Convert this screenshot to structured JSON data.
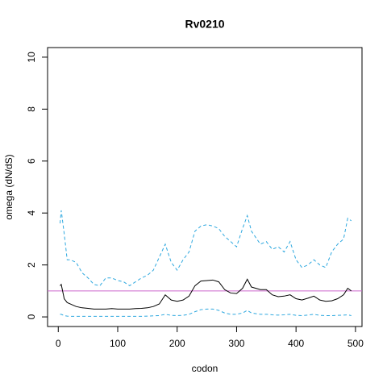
{
  "chart_data": {
    "type": "line",
    "title": "Rv0210",
    "x_label": "codon",
    "y_label": "omega (dN/dS)",
    "x": [
      3,
      5,
      10,
      15,
      20,
      30,
      40,
      50,
      60,
      70,
      80,
      90,
      100,
      110,
      120,
      130,
      140,
      150,
      160,
      170,
      180,
      190,
      200,
      210,
      220,
      230,
      240,
      250,
      260,
      270,
      280,
      290,
      300,
      310,
      318,
      325,
      340,
      350,
      360,
      370,
      380,
      390,
      400,
      410,
      420,
      430,
      440,
      450,
      460,
      470,
      480,
      487,
      493
    ],
    "series": [
      {
        "color": "#000000",
        "dashed": false,
        "values": [
          1.2,
          1.25,
          0.7,
          0.55,
          0.5,
          0.4,
          0.35,
          0.33,
          0.3,
          0.3,
          0.3,
          0.32,
          0.3,
          0.3,
          0.3,
          0.32,
          0.33,
          0.35,
          0.4,
          0.5,
          0.85,
          0.65,
          0.6,
          0.65,
          0.8,
          1.2,
          1.38,
          1.4,
          1.42,
          1.35,
          1.05,
          0.92,
          0.9,
          1.1,
          1.45,
          1.15,
          1.05,
          1.05,
          0.85,
          0.78,
          0.8,
          0.85,
          0.7,
          0.65,
          0.72,
          0.8,
          0.65,
          0.6,
          0.62,
          0.7,
          0.85,
          1.1,
          1.0
        ]
      },
      {
        "color": "#2ea8df",
        "dashed": true,
        "values": [
          3.6,
          4.1,
          3.2,
          2.2,
          2.2,
          2.1,
          1.7,
          1.5,
          1.25,
          1.2,
          1.5,
          1.5,
          1.4,
          1.35,
          1.2,
          1.35,
          1.5,
          1.6,
          1.8,
          2.3,
          2.8,
          2.1,
          1.8,
          2.2,
          2.5,
          3.3,
          3.5,
          3.55,
          3.5,
          3.4,
          3.1,
          2.9,
          2.7,
          3.4,
          3.9,
          3.3,
          2.8,
          2.9,
          2.6,
          2.7,
          2.5,
          2.9,
          2.2,
          1.9,
          2.0,
          2.2,
          2.0,
          1.9,
          2.5,
          2.8,
          3.0,
          3.8,
          3.7
        ]
      },
      {
        "color": "#2ea8df",
        "dashed": true,
        "values": [
          0.1,
          0.1,
          0.05,
          0.03,
          0.02,
          0.02,
          0.02,
          0.02,
          0.02,
          0.02,
          0.02,
          0.02,
          0.02,
          0.02,
          0.02,
          0.02,
          0.02,
          0.03,
          0.04,
          0.05,
          0.1,
          0.06,
          0.05,
          0.06,
          0.1,
          0.2,
          0.28,
          0.3,
          0.3,
          0.25,
          0.15,
          0.1,
          0.1,
          0.15,
          0.25,
          0.15,
          0.1,
          0.1,
          0.08,
          0.07,
          0.08,
          0.1,
          0.06,
          0.05,
          0.07,
          0.1,
          0.06,
          0.05,
          0.05,
          0.06,
          0.07,
          0.08,
          0.05
        ]
      }
    ],
    "hline": {
      "value": 1,
      "color": "#cc66cc"
    },
    "xlim": [
      -18,
      511
    ],
    "ylim": [
      -0.37,
      10.37
    ],
    "xticks": [
      0,
      100,
      200,
      300,
      400,
      500
    ],
    "yticks": [
      0,
      2,
      4,
      6,
      8,
      10
    ]
  }
}
